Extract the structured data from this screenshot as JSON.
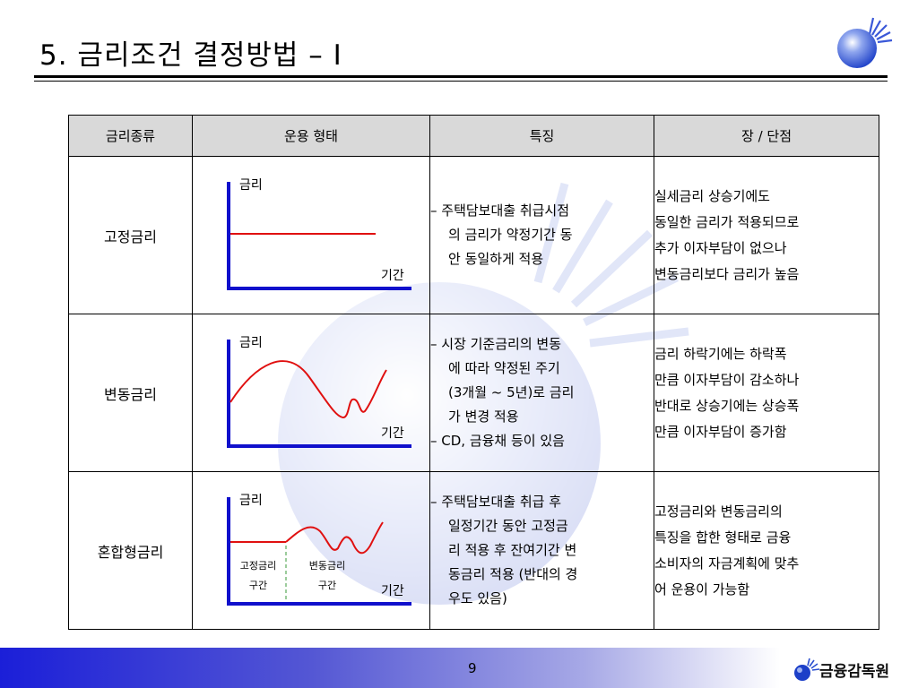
{
  "title": "5. 금리조건 결정방법 – Ⅰ",
  "headers": [
    "금리종류",
    "운용 형태",
    "특징",
    "장 / 단점"
  ],
  "graph_labels": {
    "y_axis": "금리",
    "x_axis": "기간"
  },
  "rows": [
    {
      "kind": "고정금리",
      "features": [
        {
          "text": "– 주택담보대출 취급시점",
          "indent": false
        },
        {
          "text": "의 금리가 약정기간 동",
          "indent": true
        },
        {
          "text": "안 동일하게 적용",
          "indent": true
        }
      ],
      "pros_cons": [
        "실세금리 상승기에도",
        "동일한 금리가 적용되므로",
        "추가 이자부담이 없으나",
        "변동금리보다 금리가 높음"
      ]
    },
    {
      "kind": "변동금리",
      "features": [
        {
          "text": "– 시장 기준금리의 변동",
          "indent": false
        },
        {
          "text": "에 따라 약정된 주기",
          "indent": true
        },
        {
          "text": "(3개월 ~ 5년)로 금리",
          "indent": true
        },
        {
          "text": "가 변경 적용",
          "indent": true
        },
        {
          "text": "– CD, 금융채 등이 있음",
          "indent": false
        }
      ],
      "pros_cons": [
        "금리 하락기에는 하락폭",
        "만큼 이자부담이 감소하나",
        "반대로 상승기에는 상승폭",
        "만큼 이자부담이 증가함"
      ]
    },
    {
      "kind": "혼합형금리",
      "features": [
        {
          "text": "– 주택담보대출 취급 후",
          "indent": false
        },
        {
          "text": "일정기간 동안 고정금",
          "indent": true
        },
        {
          "text": "리 적용 후 잔여기간 변",
          "indent": true
        },
        {
          "text": "동금리 적용 (반대의 경",
          "indent": true
        },
        {
          "text": "우도 있음)",
          "indent": true
        }
      ],
      "pros_cons": [
        "고정금리와 변동금리의",
        "특징을 합한 형태로 금융",
        "소비자의 자금계획에 맞추",
        "어 운용이 가능함"
      ],
      "segments": [
        {
          "line1": "고정금리",
          "line2": "구간"
        },
        {
          "line1": "변동금리",
          "line2": "구간"
        }
      ]
    }
  ],
  "footer": {
    "page": "9",
    "brand": "금융감독원"
  },
  "colors": {
    "axis": "#1010cc",
    "curve": "#e01010",
    "footer_start": "#1b1fd8",
    "header_bg": "#d9d9d9"
  }
}
